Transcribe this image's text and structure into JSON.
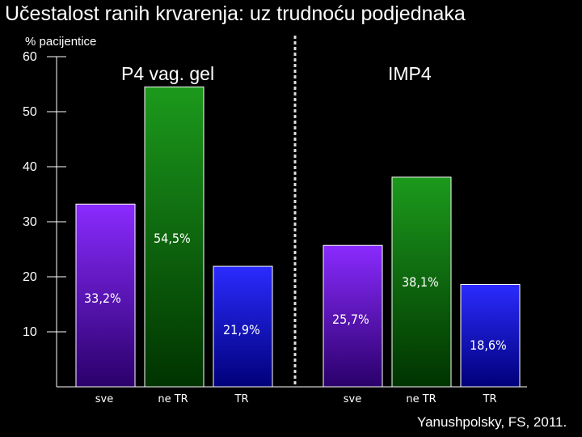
{
  "title": "Učestalost ranih krvarenja: uz trudnoću podjednaka",
  "ylabel": "% pacijentice",
  "credit": "Yanushpolsky, FS, 2011.",
  "colors": {
    "purple_top": "#8a2bff",
    "purple_bottom": "#2a006a",
    "green_top": "#1c9a1c",
    "green_bottom": "#003300",
    "blue_top": "#2b2bff",
    "blue_bottom": "#00007a"
  },
  "chart_data": {
    "type": "bar",
    "ylim": [
      0,
      60
    ],
    "yticks": [
      10,
      20,
      30,
      40,
      50,
      60
    ],
    "groups": [
      {
        "name": "P4 vag. gel",
        "categories": [
          "sve",
          "ne TR",
          "TR"
        ],
        "values": [
          33.2,
          54.5,
          21.9
        ],
        "labels": [
          "33,2%",
          "54,5%",
          "21,9%"
        ],
        "colors": [
          "purple",
          "green",
          "blue"
        ]
      },
      {
        "name": "IMP4",
        "categories": [
          "sve",
          "ne TR",
          "TR"
        ],
        "values": [
          25.7,
          38.1,
          18.6
        ],
        "labels": [
          "25,7%",
          "38,1%",
          "18,6%"
        ],
        "colors": [
          "purple",
          "green",
          "blue"
        ]
      }
    ]
  }
}
